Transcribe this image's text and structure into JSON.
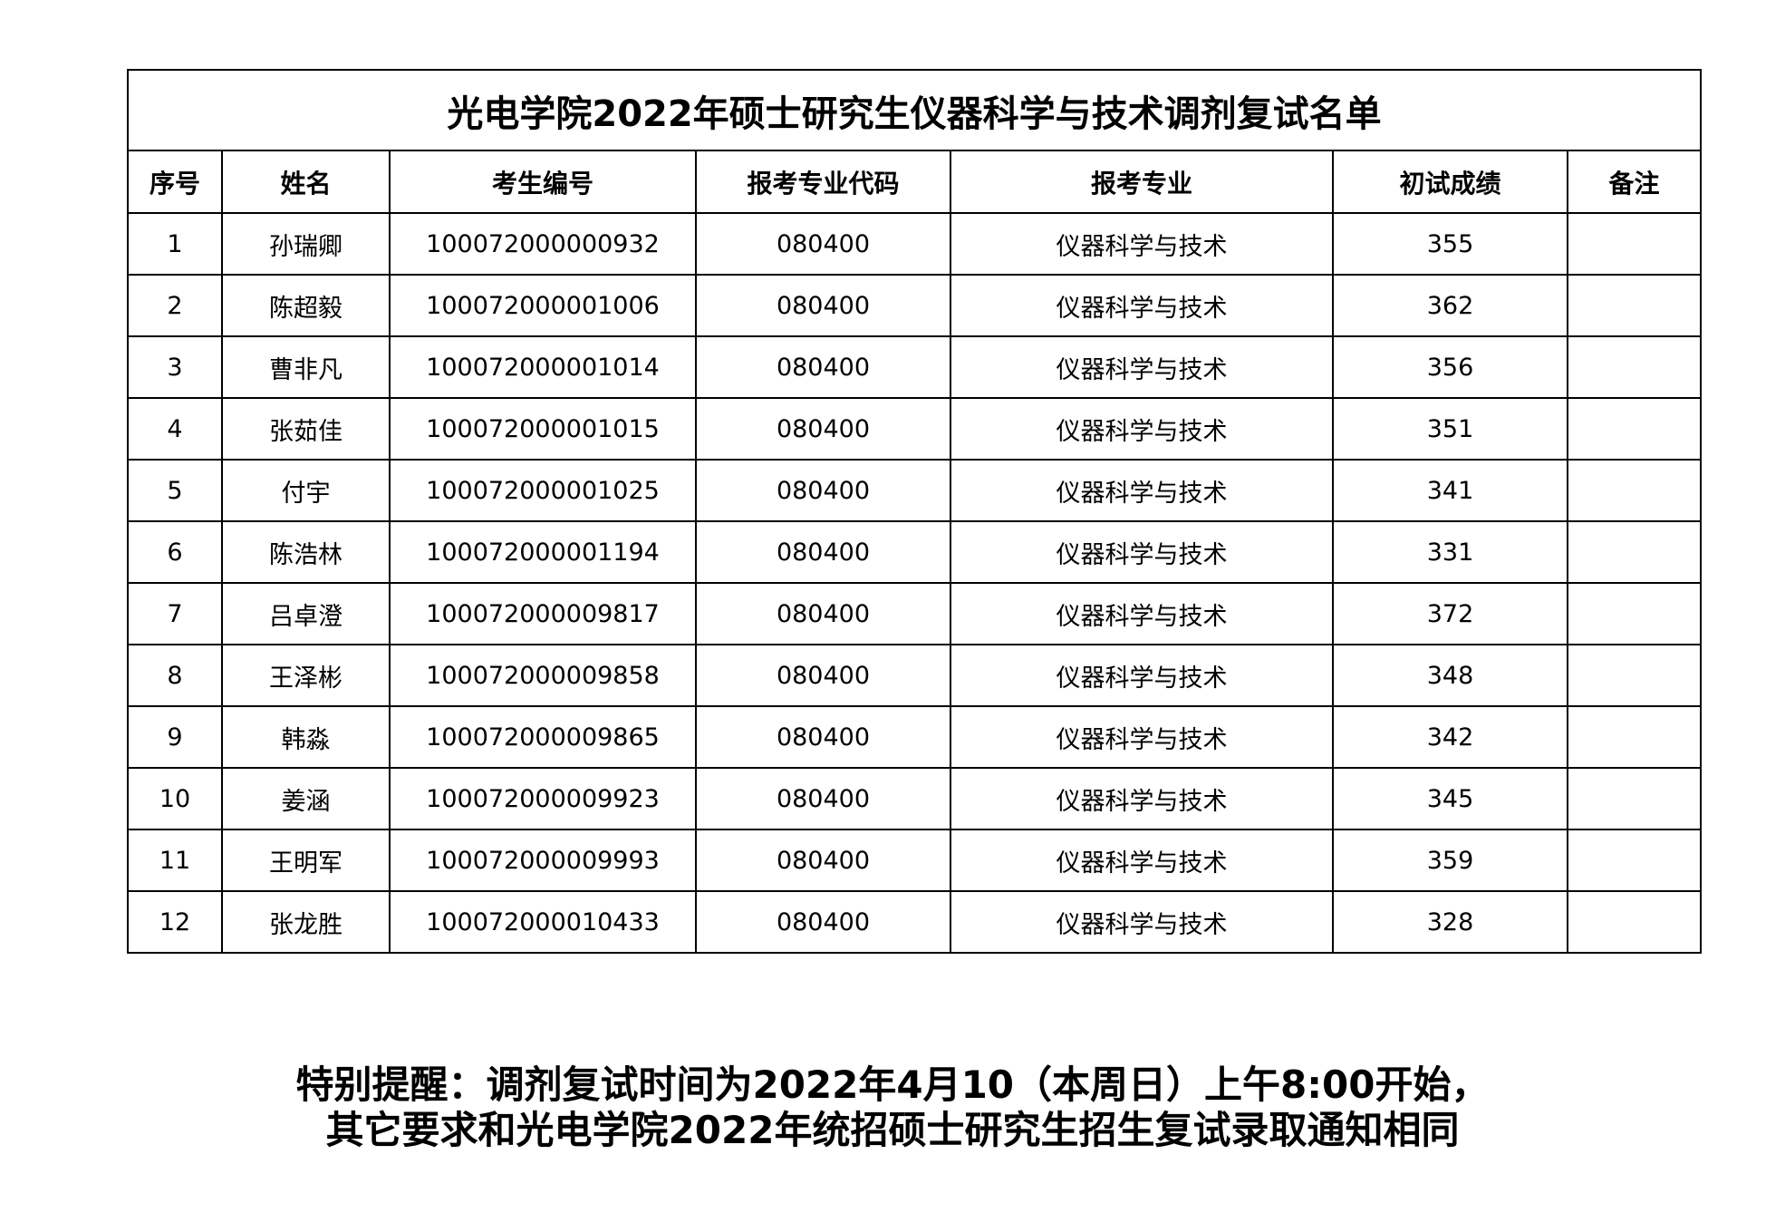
{
  "title": "光电学院2022年硕士研究生仪器科学与技术调剂复试名单",
  "headers": [
    "序号",
    "姓名",
    "考生编号",
    "报考专业代码",
    "报考专业",
    "初试成绩",
    "备注"
  ],
  "rows": [
    [
      "1",
      "孙瑞卿",
      "100072000000932",
      "080400",
      "仪器科学与技术",
      "355",
      ""
    ],
    [
      "2",
      "陈超毅",
      "100072000001006",
      "080400",
      "仪器科学与技术",
      "362",
      ""
    ],
    [
      "3",
      "曹非凡",
      "100072000001014",
      "080400",
      "仪器科学与技术",
      "356",
      ""
    ],
    [
      "4",
      "张茹佳",
      "100072000001015",
      "080400",
      "仪器科学与技术",
      "351",
      ""
    ],
    [
      "5",
      "付宇",
      "100072000001025",
      "080400",
      "仪器科学与技术",
      "341",
      ""
    ],
    [
      "6",
      "陈浩林",
      "100072000001194",
      "080400",
      "仪器科学与技术",
      "331",
      ""
    ],
    [
      "7",
      "吕卓澄",
      "100072000009817",
      "080400",
      "仪器科学与技术",
      "372",
      ""
    ],
    [
      "8",
      "王泽彬",
      "100072000009858",
      "080400",
      "仪器科学与技术",
      "348",
      ""
    ],
    [
      "9",
      "韩淼",
      "100072000009865",
      "080400",
      "仪器科学与技术",
      "342",
      ""
    ],
    [
      "10",
      "姜涵",
      "100072000009923",
      "080400",
      "仪器科学与技术",
      "345",
      ""
    ],
    [
      "11",
      "王明军",
      "100072000009993",
      "080400",
      "仪器科学与技术",
      "359",
      ""
    ],
    [
      "12",
      "张龙胜",
      "100072000010433",
      "080400",
      "仪器科学与技术",
      "328",
      ""
    ]
  ],
  "notice": {
    "line1": "特别提醒：调剂复试时间为2022年4月10（本周日）上午8:00开始，",
    "line2": "其它要求和光电学院2022年统招硕士研究生招生复试录取通知相同"
  }
}
